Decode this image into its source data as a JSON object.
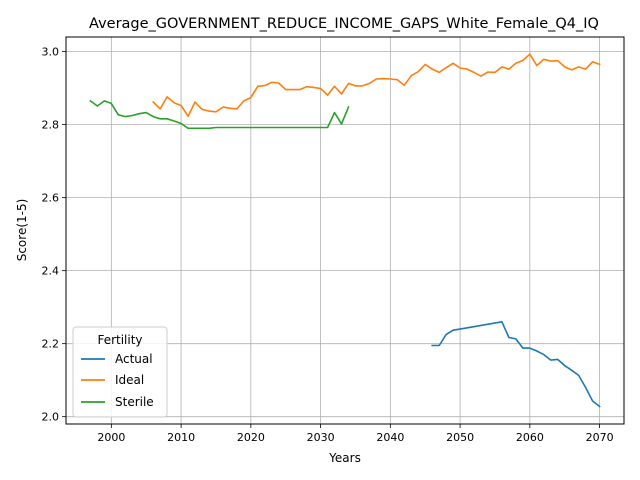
{
  "chart_data": {
    "type": "line",
    "title": "Average_GOVERNMENT_REDUCE_INCOME_GAPS_White_Female_Q4_IQ",
    "xlabel": "Years",
    "ylabel": "Score(1-5)",
    "xlim": [
      1993.5,
      2073.5
    ],
    "ylim": [
      1.98,
      3.04
    ],
    "xticks": [
      2000,
      2010,
      2020,
      2030,
      2040,
      2050,
      2060,
      2070
    ],
    "yticks": [
      2.0,
      2.2,
      2.4,
      2.6,
      2.8,
      3.0
    ],
    "ytick_labels": [
      "2.0",
      "2.2",
      "2.4",
      "2.6",
      "2.8",
      "3.0"
    ],
    "grid": true,
    "legend": {
      "title": "Fertility",
      "location": "lower-left"
    },
    "series": [
      {
        "name": "Actual",
        "color": "#1f77b4",
        "x": [
          2046,
          2047,
          2048,
          2049,
          2050,
          2056,
          2057,
          2058,
          2059,
          2060,
          2061,
          2062,
          2063,
          2064,
          2065,
          2066,
          2067,
          2068,
          2069,
          2070
        ],
        "y": [
          2.195,
          2.195,
          2.225,
          2.237,
          2.24,
          2.26,
          2.217,
          2.213,
          2.188,
          2.188,
          2.18,
          2.17,
          2.155,
          2.157,
          2.14,
          2.127,
          2.113,
          2.08,
          2.043,
          2.028
        ]
      },
      {
        "name": "Ideal",
        "color": "#ff7f0e",
        "x": [
          2006,
          2007,
          2008,
          2009,
          2010,
          2011,
          2012,
          2013,
          2014,
          2015,
          2016,
          2017,
          2018,
          2019,
          2020,
          2021,
          2022,
          2023,
          2024,
          2025,
          2026,
          2027,
          2028,
          2029,
          2030,
          2031,
          2032,
          2033,
          2034,
          2035,
          2036,
          2037,
          2038,
          2039,
          2040,
          2041,
          2042,
          2043,
          2044,
          2045,
          2046,
          2047,
          2048,
          2049,
          2050,
          2051,
          2052,
          2053,
          2054,
          2055,
          2056,
          2057,
          2058,
          2059,
          2060,
          2061,
          2062,
          2063,
          2064,
          2065,
          2066,
          2067,
          2068,
          2069,
          2070
        ],
        "y": [
          2.862,
          2.843,
          2.876,
          2.86,
          2.852,
          2.823,
          2.862,
          2.842,
          2.837,
          2.835,
          2.848,
          2.845,
          2.843,
          2.865,
          2.874,
          2.905,
          2.907,
          2.916,
          2.914,
          2.896,
          2.896,
          2.896,
          2.904,
          2.902,
          2.899,
          2.881,
          2.905,
          2.884,
          2.913,
          2.906,
          2.906,
          2.913,
          2.925,
          2.926,
          2.925,
          2.923,
          2.908,
          2.934,
          2.945,
          2.965,
          2.952,
          2.943,
          2.956,
          2.968,
          2.955,
          2.952,
          2.943,
          2.933,
          2.944,
          2.943,
          2.958,
          2.952,
          2.968,
          2.976,
          2.993,
          2.962,
          2.979,
          2.974,
          2.975,
          2.958,
          2.95,
          2.958,
          2.952,
          2.972,
          2.965
        ]
      },
      {
        "name": "Sterile",
        "color": "#2ca02c",
        "x": [
          1997,
          1998,
          1999,
          2000,
          2001,
          2002,
          2003,
          2004,
          2005,
          2006,
          2007,
          2008,
          2009,
          2010,
          2011,
          2012,
          2013,
          2014,
          2015,
          2020,
          2025,
          2030,
          2031,
          2032,
          2033,
          2034
        ],
        "y": [
          2.865,
          2.851,
          2.865,
          2.858,
          2.827,
          2.822,
          2.825,
          2.83,
          2.833,
          2.822,
          2.816,
          2.816,
          2.81,
          2.803,
          2.79,
          2.79,
          2.79,
          2.79,
          2.792,
          2.792,
          2.792,
          2.792,
          2.792,
          2.833,
          2.802,
          2.848
        ]
      }
    ]
  }
}
